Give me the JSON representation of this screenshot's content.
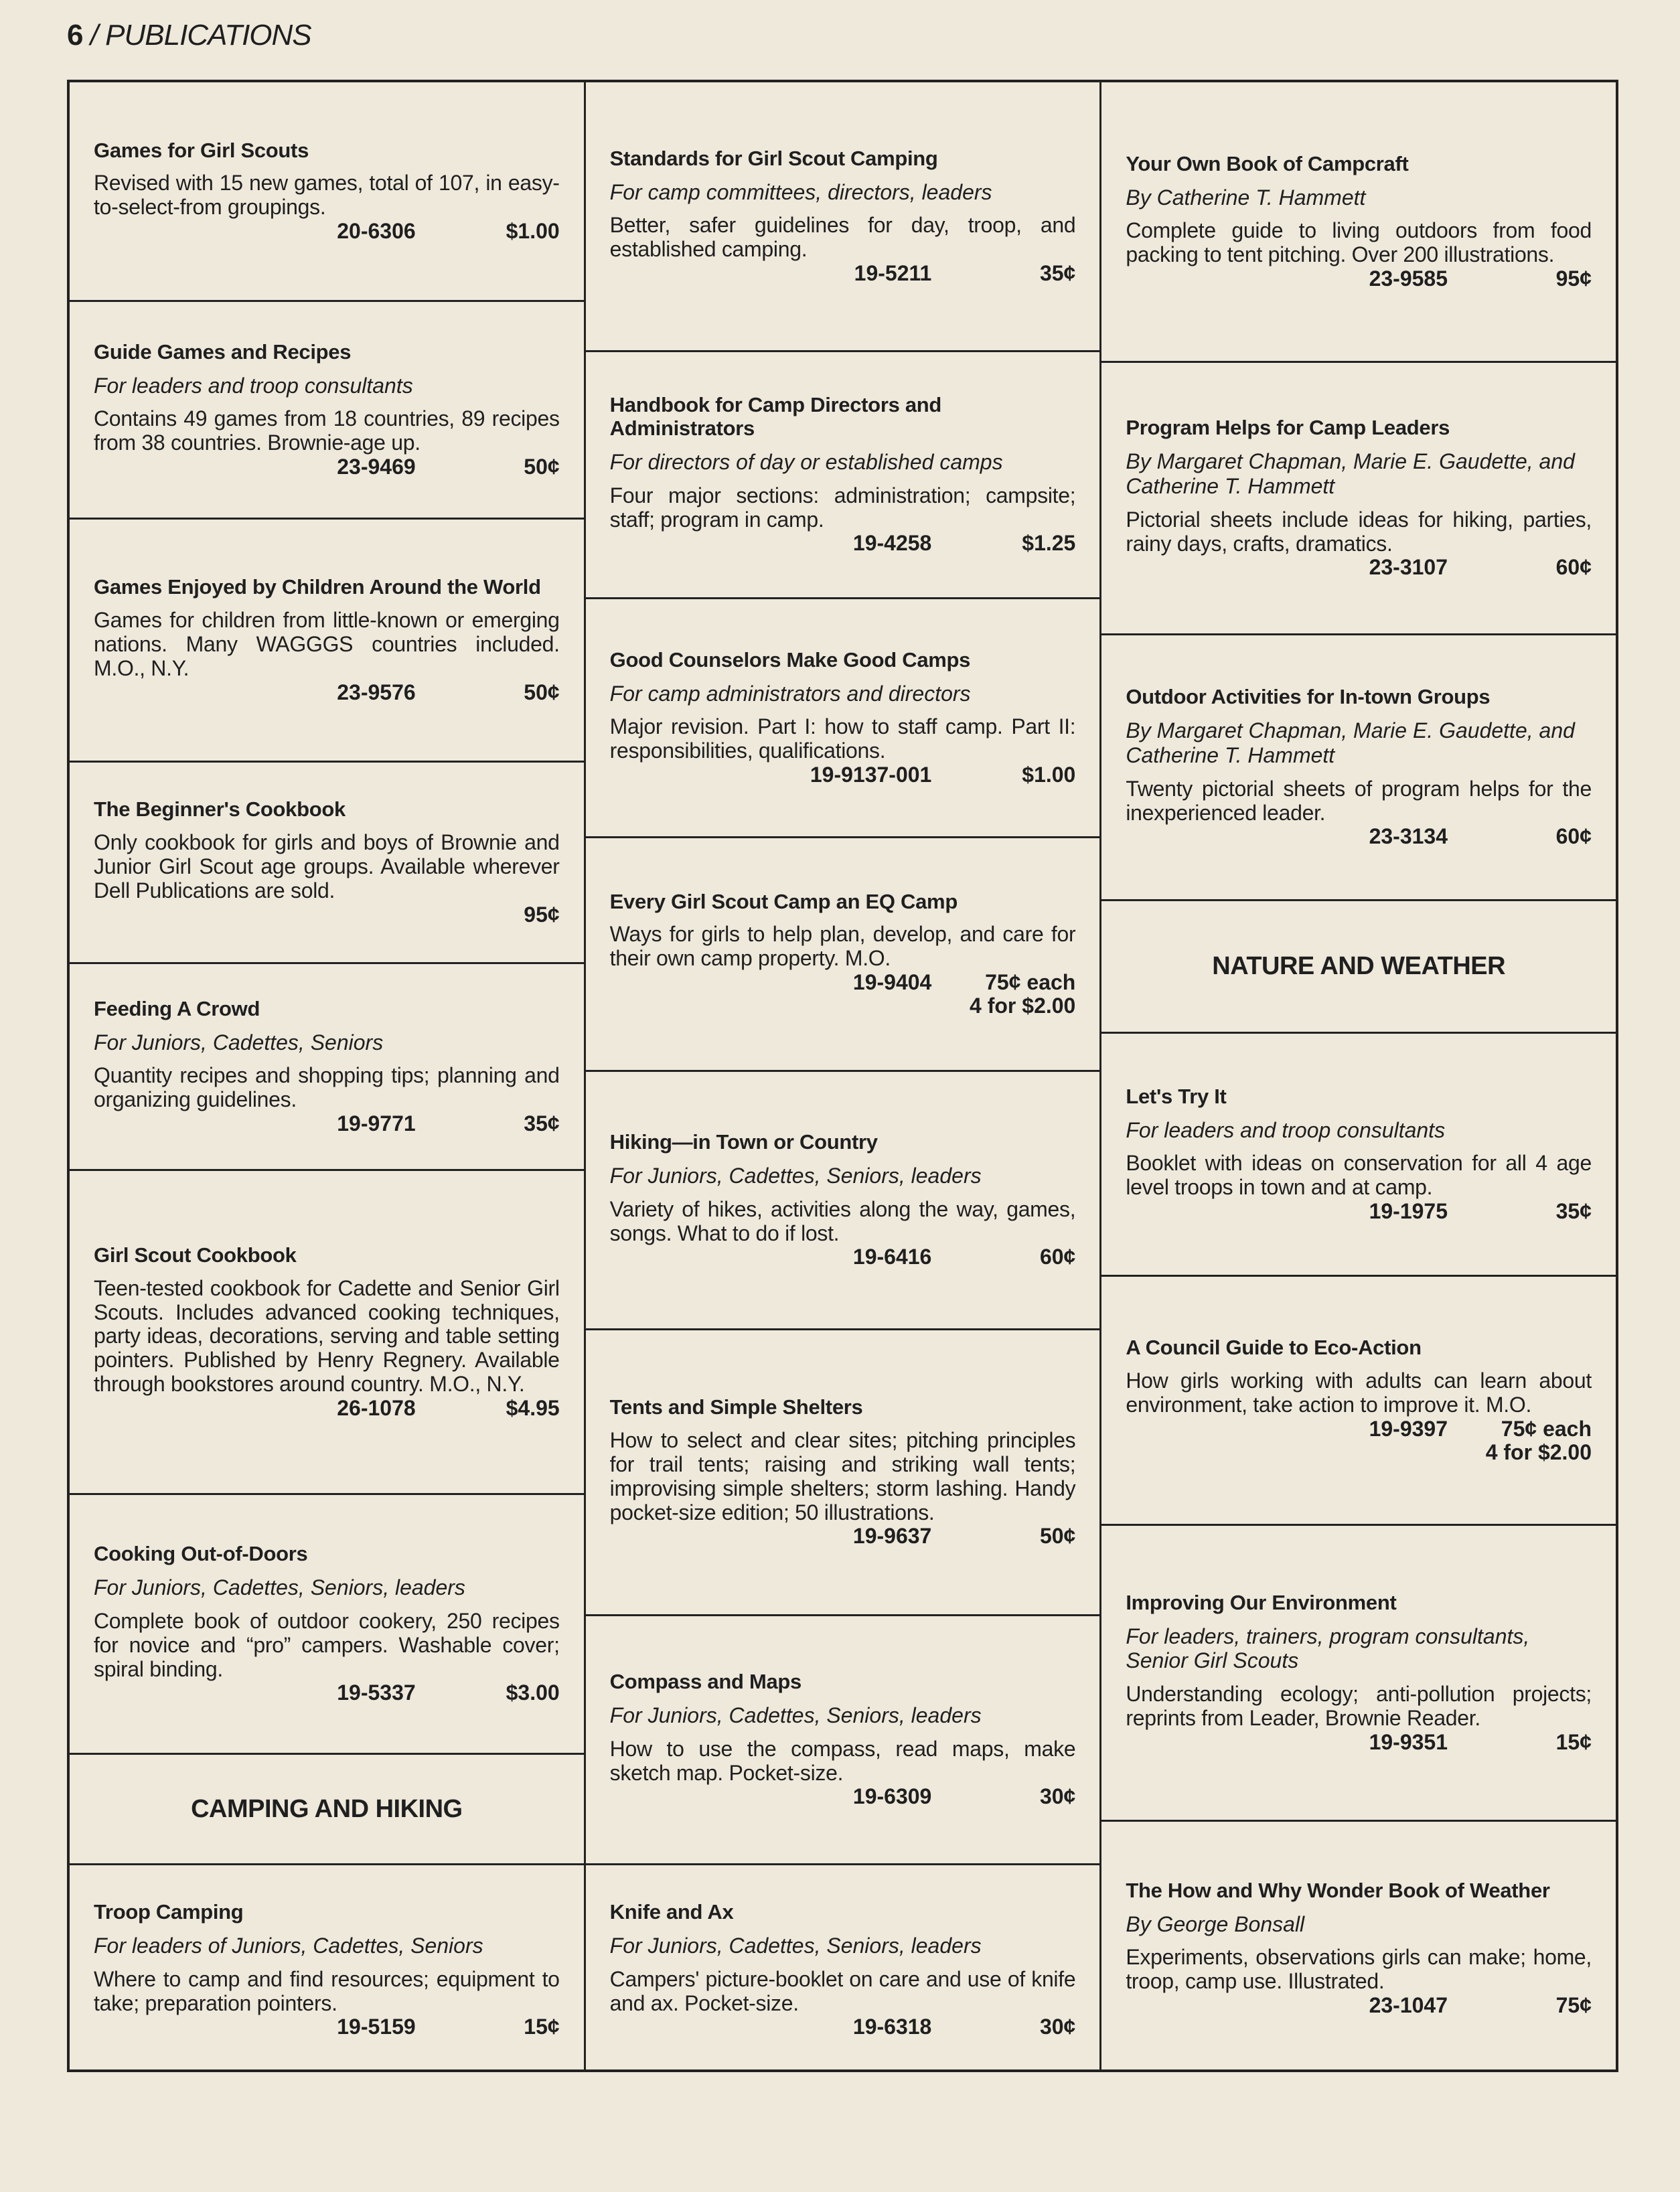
{
  "header": {
    "page_number": "6",
    "section": "/ PUBLICATIONS"
  },
  "columns": [
    [
      {
        "title": "Games for Girl Scouts",
        "desc": "Revised with 15 new games, total of 107, in easy-to-select-from groupings.",
        "code": "20-6306",
        "price": [
          "$1.00"
        ]
      },
      {
        "title": "Guide Games and Recipes",
        "sub": "For leaders and troop consultants",
        "desc": "Contains 49 games from 18 countries, 89 recipes from 38 countries. Brownie-age up.",
        "code": "23-9469",
        "price": [
          "50¢"
        ]
      },
      {
        "title": "Games Enjoyed by Children Around the World",
        "desc": "Games for children from little-known or emerging nations. Many WAGGGS countries included. M.O., N.Y.",
        "code": "23-9576",
        "price": [
          "50¢"
        ]
      },
      {
        "title": "The Beginner's Cookbook",
        "desc": "Only cookbook for girls and boys of Brownie and Junior Girl Scout age groups. Available wherever Dell Publications are sold.",
        "code": "",
        "price": [
          "95¢"
        ]
      },
      {
        "title": "Feeding A Crowd",
        "sub": "For Juniors, Cadettes, Seniors",
        "desc": "Quantity recipes and shopping tips; planning and organizing guidelines.",
        "code": "19-9771",
        "price": [
          "35¢"
        ]
      },
      {
        "title": "Girl Scout Cookbook",
        "desc": "Teen-tested cookbook for Cadette and Senior Girl Scouts. Includes advanced cooking techniques, party ideas, decorations, serving and table setting pointers. Published by Henry Regnery. Available through bookstores around country. M.O., N.Y.",
        "code": "26-1078",
        "price": [
          "$4.95"
        ]
      },
      {
        "title": "Cooking Out-of-Doors",
        "sub": "For Juniors, Cadettes, Seniors, leaders",
        "desc": "Complete book of outdoor cookery, 250 recipes for novice and “pro” campers. Washable cover; spiral binding.",
        "code": "19-5337",
        "price": [
          "$3.00"
        ]
      },
      {
        "section": "CAMPING AND HIKING"
      },
      {
        "title": "Troop Camping",
        "sub": "For leaders of Juniors, Cadettes, Seniors",
        "desc": "Where to camp and find resources; equipment to take; preparation pointers.",
        "code": "19-5159",
        "price": [
          "15¢"
        ]
      }
    ],
    [
      {
        "title": "Standards for Girl Scout Camping",
        "sub": "For camp committees, directors, leaders",
        "desc": "Better, safer guidelines for day, troop, and established camping.",
        "code": "19-5211",
        "price": [
          "35¢"
        ]
      },
      {
        "title": "Handbook for Camp Directors and Administrators",
        "sub": "For directors of day or established camps",
        "desc": "Four major sections: administration; campsite; staff; program in camp.",
        "code": "19-4258",
        "price": [
          "$1.25"
        ]
      },
      {
        "title": "Good Counselors Make Good Camps",
        "sub": "For camp administrators and directors",
        "desc": "Major revision. Part I: how to staff camp. Part II: responsibilities, qualifications.",
        "code": "19-9137-001",
        "price": [
          "$1.00"
        ]
      },
      {
        "title": "Every Girl Scout Camp an EQ Camp",
        "desc": "Ways for girls to help plan, develop, and care for their own camp property. M.O.",
        "code": "19-9404",
        "price": [
          "75¢ each",
          "4 for $2.00"
        ]
      },
      {
        "title": "Hiking—in Town or Country",
        "sub": "For Juniors, Cadettes, Seniors, leaders",
        "desc": "Variety of hikes, activities along the way, games, songs. What to do if lost.",
        "code": "19-6416",
        "price": [
          "60¢"
        ]
      },
      {
        "title": "Tents and Simple Shelters",
        "desc": "How to select and clear sites; pitching principles for trail tents; raising and striking wall tents; improvising simple shelters; storm lashing. Handy pocket-size edition; 50 illustrations.",
        "code": "19-9637",
        "price": [
          "50¢"
        ]
      },
      {
        "title": "Compass and Maps",
        "sub": "For Juniors, Cadettes, Seniors, leaders",
        "desc": "How to use the compass, read maps, make sketch map. Pocket-size.",
        "code": "19-6309",
        "price": [
          "30¢"
        ]
      },
      {
        "title": "Knife and Ax",
        "sub": "For Juniors, Cadettes, Seniors, leaders",
        "desc": "Campers' picture-booklet on care and use of knife and ax. Pocket-size.",
        "code": "19-6318",
        "price": [
          "30¢"
        ]
      }
    ],
    [
      {
        "title": "Your Own Book of Campcraft",
        "sub": "By Catherine T. Hammett",
        "desc": "Complete guide to living outdoors from food packing to tent pitching. Over 200 illustrations.",
        "code": "23-9585",
        "price": [
          "95¢"
        ]
      },
      {
        "title": "Program Helps for Camp Leaders",
        "sub": "By Margaret Chapman, Marie E. Gaudette, and Catherine T. Hammett",
        "desc": "Pictorial sheets include ideas for hiking, parties, rainy days, crafts, dramatics.",
        "code": "23-3107",
        "price": [
          "60¢"
        ]
      },
      {
        "title": "Outdoor Activities for In-town Groups",
        "sub": "By Margaret Chapman, Marie E. Gaudette, and Catherine T. Hammett",
        "desc": "Twenty pictorial sheets of program helps for the inexperienced leader.",
        "code": "23-3134",
        "price": [
          "60¢"
        ]
      },
      {
        "section": "NATURE AND WEATHER"
      },
      {
        "title": "Let's Try It",
        "sub": "For leaders and troop consultants",
        "desc": "Booklet with ideas on conservation for all 4 age level troops in town and at camp.",
        "code": "19-1975",
        "price": [
          "35¢"
        ]
      },
      {
        "title": "A Council Guide to Eco-Action",
        "desc": "How girls working with adults can learn about environment, take action to improve it. M.O.",
        "code": "19-9397",
        "price": [
          "75¢ each",
          "4 for $2.00"
        ]
      },
      {
        "title": "Improving Our Environment",
        "sub": "For leaders, trainers, program consultants, Senior Girl Scouts",
        "desc": "Understanding ecology; anti-pollution projects; reprints from Leader, Brownie Reader.",
        "code": "19-9351",
        "price": [
          "15¢"
        ]
      },
      {
        "title": "The How and Why Wonder Book of Weather",
        "sub": "By George Bonsall",
        "desc": "Experiments, observations girls can make; home, troop, camp use. Illustrated.",
        "code": "23-1047",
        "price": [
          "75¢"
        ]
      }
    ]
  ]
}
